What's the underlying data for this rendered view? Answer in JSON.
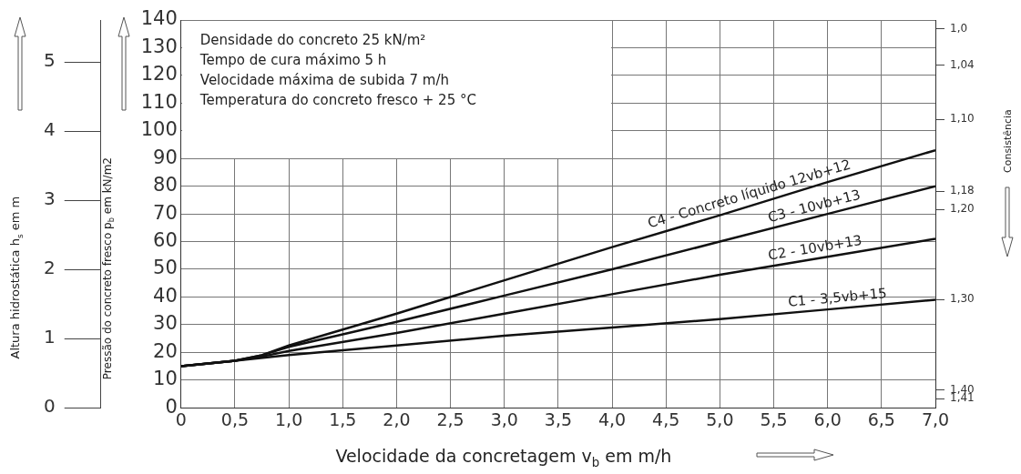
{
  "chart_data": {
    "type": "line",
    "xlabel": "Velocidade da concretagem v$_{b}$ em m/h",
    "ylabel": "Pressão do concreto fresco p$_{b}$ em kN/m2",
    "y2label": "Altura hidrostática h$_{s}$ em m",
    "y3label": "Consistência",
    "annotations": [
      "Densidade do concreto 25 kN/m²",
      "Tempo de cura máximo 5 h",
      "Velocidade máxima de subida 7 m/h",
      "Temperatura do concreto fresco + 25 °C"
    ],
    "xlim": [
      0,
      7
    ],
    "xticks": [
      0,
      {
        "value": 0.5,
        "label": "0,5"
      },
      {
        "value": 1,
        "label": "1,0"
      },
      {
        "value": 1.5,
        "label": "1,5"
      },
      {
        "value": 2,
        "label": "2,0"
      },
      {
        "value": 2.5,
        "label": "2,5"
      },
      {
        "value": 3,
        "label": "3,0"
      },
      {
        "value": 3.5,
        "label": "3,5"
      },
      {
        "value": 4,
        "label": "4,0"
      },
      {
        "value": 4.5,
        "label": "4,5"
      },
      {
        "value": 5,
        "label": "5,0"
      },
      {
        "value": 5.5,
        "label": "5,5"
      },
      {
        "value": 6,
        "label": "6,0"
      },
      {
        "value": 6.5,
        "label": "6,5"
      },
      {
        "value": 7,
        "label": "7,0"
      }
    ],
    "ylim": [
      0,
      140
    ],
    "yticks": [
      0,
      10,
      20,
      30,
      40,
      50,
      60,
      70,
      80,
      90,
      100,
      110,
      120,
      130,
      140
    ],
    "y2lim": [
      0,
      5.6
    ],
    "y2ticks": [
      0,
      1,
      2,
      3,
      4,
      5
    ],
    "y3lim": [
      1.42,
      0.99
    ],
    "y3ticks": [
      {
        "value": 1.0,
        "label": "1,0"
      },
      {
        "value": 1.04,
        "label": "1,04"
      },
      {
        "value": 1.1,
        "label": "1,10"
      },
      {
        "value": 1.18,
        "label": "1,18"
      },
      {
        "value": 1.2,
        "label": "1,20"
      },
      {
        "value": 1.3,
        "label": "1,30"
      },
      {
        "value": 1.4,
        "label": "1,40"
      },
      {
        "value": 1.41,
        "label": "1,41"
      }
    ],
    "grid": true,
    "legend": false,
    "marker": "none",
    "line_style": "solid",
    "series": [
      {
        "name": "C1 - 3,5vb+15",
        "color": "#111111",
        "x": [
          0,
          0.5,
          1,
          2,
          3,
          4,
          5,
          6,
          7
        ],
        "values": [
          15,
          17,
          19,
          22.5,
          26,
          29,
          32,
          35.5,
          39
        ]
      },
      {
        "name": "C2 - 10vb+13",
        "color": "#111111",
        "x": [
          0,
          0.5,
          0.75,
          1,
          2,
          3,
          4,
          5,
          6,
          7
        ],
        "values": [
          15,
          17,
          18.5,
          20.5,
          27,
          34,
          41,
          48,
          54.5,
          61
        ]
      },
      {
        "name": "C3 - 10vb+13",
        "color": "#111111",
        "x": [
          0,
          0.5,
          0.75,
          1,
          2,
          3,
          4,
          5,
          6,
          7
        ],
        "values": [
          15,
          17,
          19,
          22,
          31,
          40.5,
          50,
          60,
          70,
          80
        ]
      },
      {
        "name": "C4 - Concreto líquido 12vb+12",
        "color": "#111111",
        "x": [
          0,
          0.5,
          0.75,
          1,
          2,
          3,
          4,
          5,
          6,
          7
        ],
        "values": [
          15,
          17,
          19,
          22.5,
          34,
          46,
          58,
          69.5,
          81.5,
          93
        ]
      }
    ]
  }
}
